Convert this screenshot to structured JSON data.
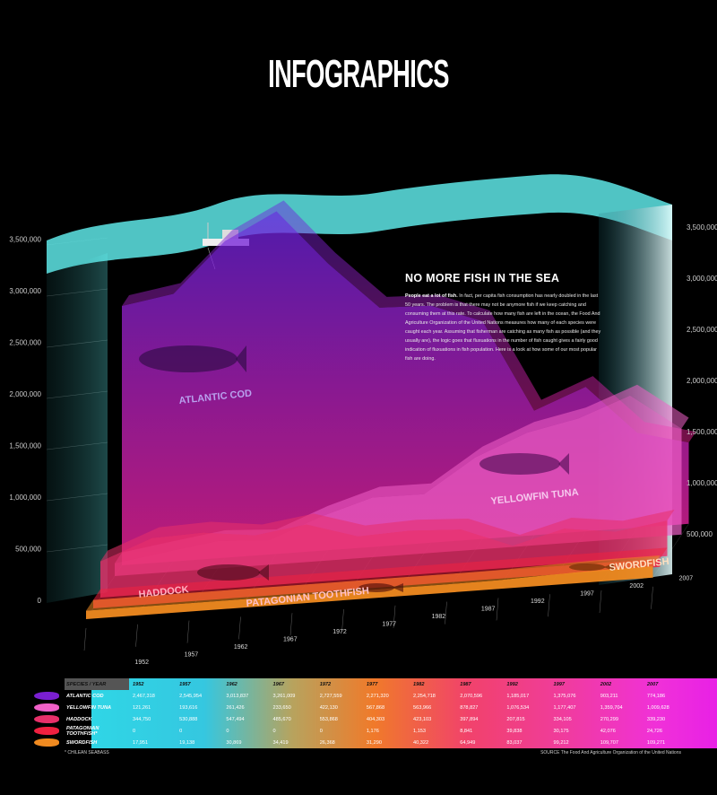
{
  "title": "INFOGRAPHICS",
  "description": {
    "heading": "NO MORE FISH IN THE SEA",
    "lead": "People eat a lot of fish.",
    "body": "In fact, per capita fish consumption has nearly doubled in the last 50 years. The problem is that there may not be anymore fish if we keep catching and consuming them at this rate. To calculate how many fish are left in the ocean, the Food And Agriculture Organization of the United Nations measures how many of each species were caught each year. Assuming that fisherman are catching as many fish as possible (and they usually are), the logic goes that fluxuations in the number of fish caught gives a fairly good indication of fluxuations in fish population. Here is a look at how some of our most popular fish are doing."
  },
  "colors": {
    "background": "#000000",
    "water": "#5ee6e6",
    "cod": "#7a1fd0",
    "tuna": "#f060c8",
    "haddock": "#e8306a",
    "toothfish": "#f02040",
    "swordfish": "#f08a20"
  },
  "chart_data": {
    "type": "area",
    "x": [
      "1952",
      "1957",
      "1962",
      "1967",
      "1972",
      "1977",
      "1982",
      "1987",
      "1992",
      "1997",
      "2002",
      "2007"
    ],
    "ylim": [
      0,
      3500000
    ],
    "y_ticks_left": [
      "0",
      "500,000",
      "1,000,000",
      "1,500,000",
      "2,000,000",
      "2,500,000",
      "3,000,000",
      "3,500,000"
    ],
    "y_ticks_right": [
      "500,000",
      "1,000,000",
      "1,500,000",
      "2,000,000",
      "2,500,000",
      "3,000,000",
      "3,500,000"
    ],
    "series": [
      {
        "name": "ATLANTIC COD",
        "label": "ATLANTIC COD",
        "values": [
          2467318,
          2545954,
          3013837,
          3261009,
          2727559,
          2271320,
          2254718,
          2070596,
          1185017,
          1375076,
          903211,
          774186
        ]
      },
      {
        "name": "YELLOWFIN TUNA",
        "label": "YELLOWFIN TUNA",
        "values": [
          121261,
          193616,
          261426,
          233650,
          422130,
          567868,
          563966,
          878827,
          1076534,
          1177407,
          1359704,
          1009628
        ]
      },
      {
        "name": "HADDOCK",
        "label": "HADDOCK",
        "values": [
          344750,
          530888,
          547494,
          485670,
          553868,
          404303,
          423103,
          397894,
          207815,
          334105,
          270299,
          339230
        ]
      },
      {
        "name": "PATAGONIAN TOOTHFISH*",
        "label": "PATAGONIAN TOOTHFISH",
        "values": [
          0,
          0,
          0,
          0,
          0,
          1176,
          1153,
          8841,
          39838,
          30175,
          42076,
          24726
        ]
      },
      {
        "name": "SWORDFISH",
        "label": "SWORDFISH",
        "values": [
          17951,
          19138,
          30869,
          34419,
          26368,
          31290,
          40322,
          64949,
          83037,
          99212,
          109707,
          109271
        ]
      }
    ],
    "table": {
      "header_label": "SPECIES / YEAR",
      "rows": [
        {
          "name": "ATLANTIC COD",
          "cells": [
            "2,467,318",
            "2,545,954",
            "3,013,837",
            "3,261,009",
            "2,727,559",
            "2,271,320",
            "2,254,718",
            "2,070,596",
            "1,185,017",
            "1,375,076",
            "903,211",
            "774,186"
          ]
        },
        {
          "name": "YELLOWFIN TUNA",
          "cells": [
            "121,261",
            "193,616",
            "261,426",
            "233,650",
            "422,130",
            "567,868",
            "563,966",
            "878,827",
            "1,076,534",
            "1,177,407",
            "1,359,704",
            "1,009,628"
          ]
        },
        {
          "name": "HADDOCK",
          "cells": [
            "344,750",
            "530,888",
            "547,494",
            "485,670",
            "553,868",
            "404,303",
            "423,103",
            "397,894",
            "207,815",
            "334,105",
            "270,299",
            "339,230"
          ]
        },
        {
          "name": "PATAGONIAN TOOTHFISH*",
          "cells": [
            "0",
            "0",
            "0",
            "0",
            "0",
            "1,176",
            "1,153",
            "8,841",
            "39,838",
            "30,175",
            "42,076",
            "24,726"
          ]
        },
        {
          "name": "SWORDFISH",
          "cells": [
            "17,951",
            "19,138",
            "30,869",
            "34,419",
            "26,368",
            "31,290",
            "40,322",
            "64,949",
            "83,037",
            "99,212",
            "109,707",
            "109,271"
          ]
        }
      ]
    },
    "footnote": "* CHILEAN SEABASS",
    "source": "SOURCE The Food And Agriculture Organization of the United Nations"
  }
}
